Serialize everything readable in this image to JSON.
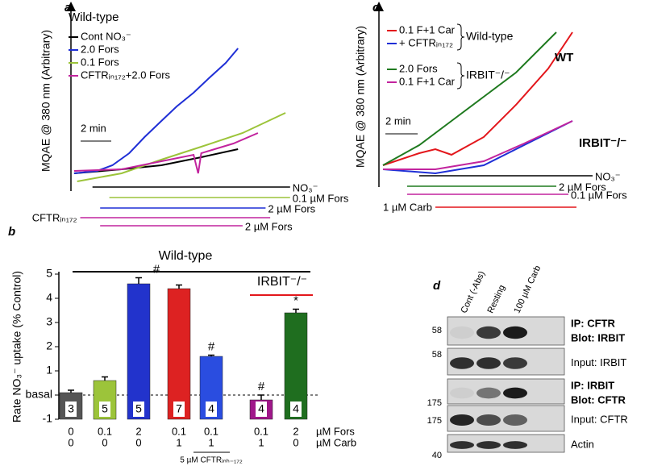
{
  "chart_data": [
    {
      "type": "line",
      "panel": "a",
      "ylabel": "MQAE @ 380 nm (Arbitrary)",
      "legend_style": "title",
      "xlim": [
        0,
        14.5
      ],
      "ylim": [
        0,
        100
      ],
      "scale_bar": {
        "value": 2,
        "label": "2 min"
      },
      "groups": [
        {
          "name": "Wild-type",
          "series": [
            {
              "name": "Cont NO₃⁻",
              "color": "#000000",
              "x": [
                0.1,
                3.2,
                5.8,
                8.4,
                10.8
              ],
              "values": [
                10,
                12.5,
                15,
                20,
                25
              ]
            },
            {
              "name": "2.0 Fors",
              "color": "#1f2fd6",
              "x": [
                0.1,
                1.6,
                2.6,
                3.7,
                4.7,
                5.8,
                6.8,
                7.9,
                8.9,
                10,
                10.8
              ],
              "values": [
                10,
                11.5,
                15,
                22.5,
                32.5,
                42.5,
                51.5,
                60,
                69,
                78.5,
                87.5
              ]
            },
            {
              "name": "0.1 Fors",
              "color": "#9cc43a",
              "x": [
                0.3,
                3.2,
                5.8,
                8.4,
                11.1,
                13.9
              ],
              "values": [
                5,
                10,
                18.5,
                26.5,
                35,
                47.5
              ]
            },
            {
              "name": "CFTRᵢₙ₁₇₂+2.0 Fors",
              "color": "#c2249e",
              "x": [
                0.1,
                3.2,
                5.8,
                7.9,
                8.2,
                8.4,
                10.5,
                12.1
              ],
              "values": [
                11.5,
                12.5,
                17.5,
                21.5,
                10,
                22.5,
                28.5,
                35
              ]
            }
          ]
        }
      ],
      "treatments": [
        {
          "label": "NO₃⁻",
          "color": "#000000",
          "start": 1.3,
          "end": 14.2,
          "side": "right"
        },
        {
          "label": "0.1 µM Fors",
          "color": "#9cc43a",
          "start": 2.4,
          "end": 14.2,
          "side": "right"
        },
        {
          "label": "2 µM Fors",
          "color": "#1f2fd6",
          "start": 1.8,
          "end": 12.6,
          "side": "right"
        },
        {
          "label": "CFTRᵢₙ₁₇₂",
          "color": "#c2249e",
          "start": 0.5,
          "end": 12.9,
          "side": "left"
        },
        {
          "label": "2 µM Fors",
          "color": "#c2249e",
          "start": 1.8,
          "end": 11.1,
          "side": "right"
        }
      ]
    },
    {
      "type": "line",
      "panel": "c",
      "ylabel": "MQAE @ 380 nm (Arbitrary)",
      "legend_style": "bracket",
      "xlim": [
        0,
        13.5
      ],
      "ylim": [
        0,
        100
      ],
      "scale_bar": {
        "value": 2,
        "label": "2 min"
      },
      "groups": [
        {
          "name": "Wild-type",
          "series": [
            {
              "name": "0.1 F+1 Car",
              "color": "#e3161b",
              "label": "WT",
              "x": [
                0.25,
                2.5,
                3.5,
                4.5,
                6.5,
                8.5,
                10.5,
                12
              ],
              "values": [
                12.5,
                20,
                22.5,
                19,
                30,
                50,
                72.5,
                95
              ]
            },
            {
              "name": "+ CFTRᵢₙ₁₇₂",
              "color": "#1f2fd6",
              "x": [
                0.25,
                3.5,
                6.5,
                9,
                12
              ],
              "values": [
                10,
                7.5,
                12.5,
                25,
                40
              ]
            }
          ]
        },
        {
          "name": "IRBIT⁻/⁻",
          "series": [
            {
              "name": "2.0 Fors",
              "color": "#1f7a1f",
              "x": [
                0.25,
                2.5,
                4.5,
                6.5,
                8.5,
                11
              ],
              "values": [
                12.5,
                25,
                40,
                55,
                70,
                95
              ]
            },
            {
              "name": "0.1 F+1 Car",
              "color": "#c2249e",
              "label": "IRBIT⁻/⁻",
              "x": [
                0.25,
                3.5,
                6.5,
                9,
                12
              ],
              "values": [
                10,
                10,
                15,
                26,
                40
              ]
            }
          ]
        }
      ],
      "treatments": [
        {
          "label": "NO₃⁻",
          "color": "#000000",
          "start": 2.5,
          "end": 13.25,
          "side": "right"
        },
        {
          "label": "2 µM Fors",
          "color": "#1f7a1f",
          "start": 1.75,
          "end": 11,
          "side": "right"
        },
        {
          "label": "0.1 µM Fors",
          "color": "#c2249e",
          "start": 1.75,
          "end": 11.75,
          "side": "right"
        },
        {
          "label": "1 µM Carb",
          "color": "#e3161b",
          "start": 3.5,
          "end": 12.25,
          "side": "left"
        }
      ]
    },
    {
      "type": "bar",
      "panel": "b",
      "ylabel": "Rate NO₃⁻ uptake (% Control)",
      "ylim": [
        -1,
        5
      ],
      "yticks": [
        -1,
        {
          "value": 0,
          "label": "basal"
        },
        1,
        2,
        3,
        4,
        5
      ],
      "hline": 0,
      "values": [
        0.1,
        0.6,
        4.6,
        4.4,
        1.6,
        -0.2,
        3.4
      ],
      "errors": [
        0.1,
        0.15,
        0.25,
        0.15,
        0.05,
        0.2,
        0.15
      ],
      "colors": [
        "#555555",
        "#9cc43a",
        "#2233cc",
        "#dd2222",
        "#2a4de0",
        "#a0178a",
        "#1f6e1f"
      ],
      "n": [
        3,
        5,
        5,
        7,
        4,
        4,
        4
      ],
      "marks": [
        null,
        null,
        "#",
        null,
        "#",
        "#",
        "*"
      ],
      "rows": [
        {
          "label": "µM Fors",
          "categories": [
            "0",
            "0.1",
            "2",
            "0.1",
            "0.1",
            "0.1",
            "2"
          ]
        },
        {
          "label": "µM Carb",
          "categories": [
            "0",
            "0",
            "0",
            "1",
            "1",
            "1",
            "0"
          ]
        }
      ],
      "groups": [
        {
          "label": "Wild-type",
          "color": "#000000"
        },
        {
          "label": "IRBIT⁻/⁻",
          "color": "#e3161b"
        }
      ],
      "note": "5 µM CFTRᵢₙₕ₋₁₇₂"
    }
  ],
  "blot": {
    "panel": "d",
    "columns": [
      "Cont (-Abs)",
      "Resting",
      "100 µM Carb"
    ],
    "rows": [
      {
        "lines": [
          "IP: CFTR",
          "Blot: IRBIT"
        ],
        "marker": 58
      },
      {
        "lines": [
          "Input: IRBIT"
        ],
        "marker": 58
      },
      {
        "lines": [
          "IP: IRBIT",
          "Blot: CFTR"
        ],
        "marker": 175
      },
      {
        "lines": [
          "Input: CFTR"
        ],
        "marker": 175
      },
      {
        "lines": [
          "Actin"
        ],
        "marker": 40
      }
    ]
  }
}
